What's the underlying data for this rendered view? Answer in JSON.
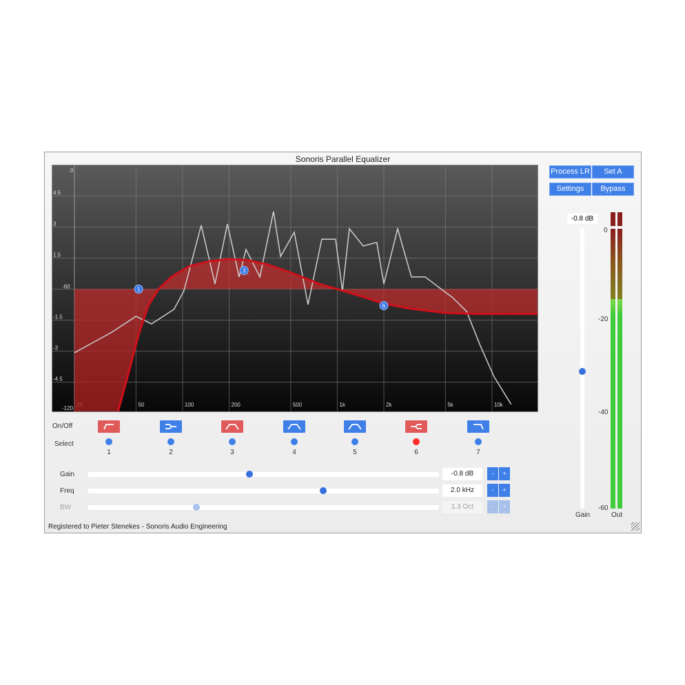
{
  "window": {
    "title": "Sonoris Parallel Equalizer"
  },
  "toolbar": {
    "process": "Process LR",
    "set": "Set A",
    "settings": "Settings",
    "bypass": "Bypass"
  },
  "colors": {
    "accent": "#3f7fe8",
    "band_off": "#e05a5a",
    "selected": "#ff2a2a",
    "curve": "#d0101a",
    "meter_green": "#3fcc3a"
  },
  "chart_data": {
    "type": "line",
    "x_scale": "log",
    "x_ticks": [
      "20",
      "50",
      "100",
      "200",
      "500",
      "1k",
      "2k",
      "5k",
      "10k"
    ],
    "x_tick_values": [
      20,
      50,
      100,
      200,
      500,
      1000,
      2000,
      5000,
      10000
    ],
    "xlim": [
      20,
      20000
    ],
    "y_ticks_gain": [
      "4.5",
      "3",
      "1.5",
      "-1.5",
      "-3",
      "-4.5"
    ],
    "y_tick_gain_values": [
      4.5,
      3,
      1.5,
      -1.5,
      -3,
      -4.5
    ],
    "gain_ylim": [
      -6,
      6
    ],
    "y_ticks_spectrum": [
      "0",
      "-60",
      "-120"
    ],
    "spectrum_ylim": [
      -120,
      0
    ],
    "grid": true,
    "spectrum": [
      [
        20,
        -91.4
      ],
      [
        35,
        -81.3
      ],
      [
        50,
        -73.6
      ],
      [
        63,
        -77.3
      ],
      [
        88,
        -70.2
      ],
      [
        102,
        -61.2
      ],
      [
        132,
        -29.2
      ],
      [
        162,
        -57.8
      ],
      [
        195,
        -28.6
      ],
      [
        232,
        -54.4
      ],
      [
        257,
        -41
      ],
      [
        316,
        -54.4
      ],
      [
        387,
        -22.5
      ],
      [
        430,
        -44.4
      ],
      [
        527,
        -32.6
      ],
      [
        647,
        -67.9
      ],
      [
        794,
        -36
      ],
      [
        975,
        -36
      ],
      [
        1080,
        -61.2
      ],
      [
        1197,
        -30.9
      ],
      [
        1470,
        -39.3
      ],
      [
        1800,
        -37.6
      ],
      [
        2000,
        -57.8
      ],
      [
        2456,
        -30.9
      ],
      [
        3014,
        -54.4
      ],
      [
        3700,
        -54.4
      ],
      [
        4540,
        -59.5
      ],
      [
        5570,
        -64.5
      ],
      [
        6850,
        -71.2
      ],
      [
        8410,
        -88
      ],
      [
        10300,
        -103
      ],
      [
        13300,
        -116.6
      ]
    ],
    "eq_curve": [
      [
        20,
        -14
      ],
      [
        30,
        -9.5
      ],
      [
        38,
        -6
      ],
      [
        45,
        -4
      ],
      [
        52,
        -2.2
      ],
      [
        60,
        -0.8
      ],
      [
        70,
        0
      ],
      [
        85,
        0.6
      ],
      [
        110,
        1.1
      ],
      [
        150,
        1.35
      ],
      [
        200,
        1.45
      ],
      [
        260,
        1.4
      ],
      [
        350,
        1.2
      ],
      [
        500,
        0.8
      ],
      [
        800,
        0.2
      ],
      [
        1000,
        0
      ],
      [
        1500,
        -0.4
      ],
      [
        2000,
        -0.7
      ],
      [
        3000,
        -0.95
      ],
      [
        5000,
        -1.15
      ],
      [
        8000,
        -1.2
      ],
      [
        20000,
        -1.2
      ]
    ],
    "handles": [
      {
        "label": "1",
        "freq": 52,
        "gain": 0
      },
      {
        "label": "3",
        "freq": 250,
        "gain": 0.9
      },
      {
        "label": "6",
        "freq": 2000,
        "gain": -0.8
      }
    ]
  },
  "bands": {
    "onoff_label": "On/Off",
    "select_label": "Select",
    "items": [
      {
        "num": "1",
        "type": "low-shelf",
        "on": false,
        "selected": false
      },
      {
        "num": "2",
        "type": "parallel-insert",
        "on": true,
        "selected": false
      },
      {
        "num": "3",
        "type": "bell",
        "on": false,
        "selected": false
      },
      {
        "num": "4",
        "type": "bell",
        "on": true,
        "selected": false
      },
      {
        "num": "5",
        "type": "bell",
        "on": true,
        "selected": false
      },
      {
        "num": "6",
        "type": "parallel-return",
        "on": false,
        "selected": true
      },
      {
        "num": "7",
        "type": "high-shelf",
        "on": true,
        "selected": false
      }
    ]
  },
  "params": [
    {
      "label": "Gain",
      "value": "-0.8 dB",
      "position": 0.46,
      "enabled": true,
      "minus": "-",
      "plus": "+"
    },
    {
      "label": "Freq",
      "value": "2.0 kHz",
      "position": 0.67,
      "enabled": true,
      "minus": "-",
      "plus": "+"
    },
    {
      "label": "BW",
      "value": "1.3 Oct",
      "position": 0.31,
      "enabled": false,
      "minus": "-",
      "plus": "+"
    }
  ],
  "output": {
    "gain_value": "-0.8 dB",
    "gain_position": 0.51,
    "gain_label": "Gain",
    "out_label": "Out",
    "scale": [
      "0",
      "-20",
      "-40",
      "-60"
    ],
    "level_db": -15
  },
  "footer": "Registered to Pieter Stenekes - Sonoris Audio Engineering"
}
